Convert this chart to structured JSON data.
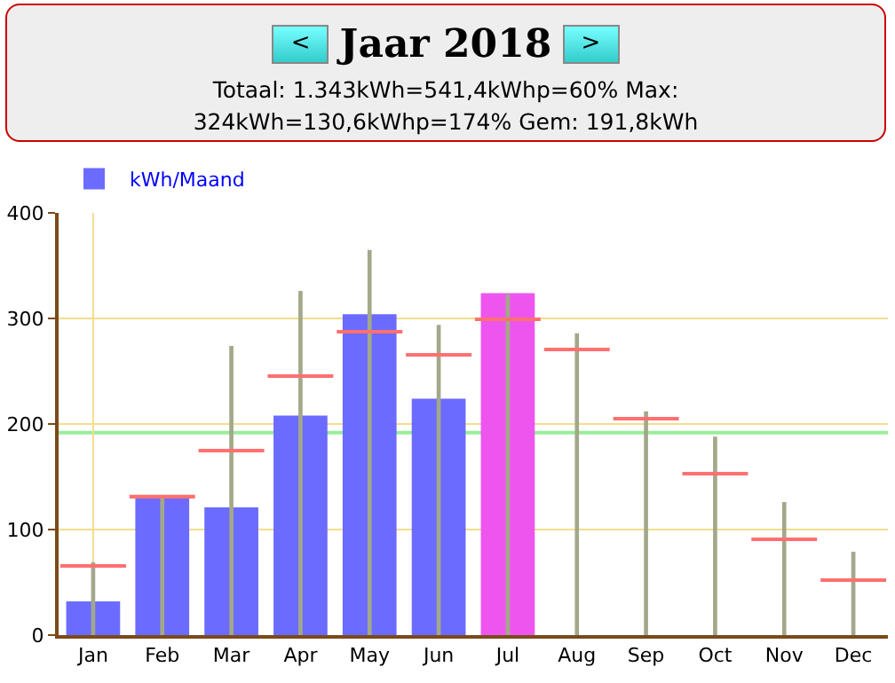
{
  "chart_data": {
    "type": "bar",
    "title": "Jaar 2018",
    "subtitle": "Totaal: 1.343kWh=541,4kWhp=60%     Max: 324kWh=130,6kWhp=174%     Gem: 191,8kWh",
    "annotations": [
      "<",
      ">"
    ],
    "categories": [
      "Jan",
      "Feb",
      "Mar",
      "Apr",
      "May",
      "Jun",
      "Jul",
      "Aug",
      "Sep",
      "Oct",
      "Nov",
      "Dec"
    ],
    "series": [
      {
        "name": "kWh/Maand",
        "type": "bar",
        "color": "#6b6bff",
        "colors": [
          "#6b6bff",
          "#6b6bff",
          "#6b6bff",
          "#6b6bff",
          "#6b6bff",
          "#6b6bff",
          "#ee55ee",
          "#6b6bff",
          "#6b6bff",
          "#6b6bff",
          "#6b6bff",
          "#6b6bff"
        ],
        "values": [
          32,
          130,
          121,
          208,
          304,
          224,
          324,
          null,
          null,
          null,
          null,
          null
        ]
      },
      {
        "type": "bar",
        "color": "#a3a88a",
        "values": [
          69,
          130,
          274,
          326,
          365,
          294,
          323,
          286,
          212,
          188,
          126,
          79
        ]
      },
      {
        "type": "bar",
        "color": "#ff7070",
        "base": [
          65,
          131,
          174,
          244,
          286,
          264,
          298,
          269,
          204,
          152,
          90,
          51
        ],
        "values": [
          2,
          2,
          2,
          2,
          2,
          2,
          2,
          2,
          2,
          2,
          2,
          2
        ]
      }
    ],
    "ylim": [
      0,
      400
    ],
    "yticks": [
      0,
      100,
      200,
      300,
      400
    ],
    "grid": "y",
    "legend": "top left",
    "ref_lines": [
      {
        "axis": "y",
        "value": 191.8,
        "color": "#99ee99"
      },
      {
        "axis": "x",
        "value": "Jan",
        "color": "#f5dd8c"
      }
    ]
  }
}
